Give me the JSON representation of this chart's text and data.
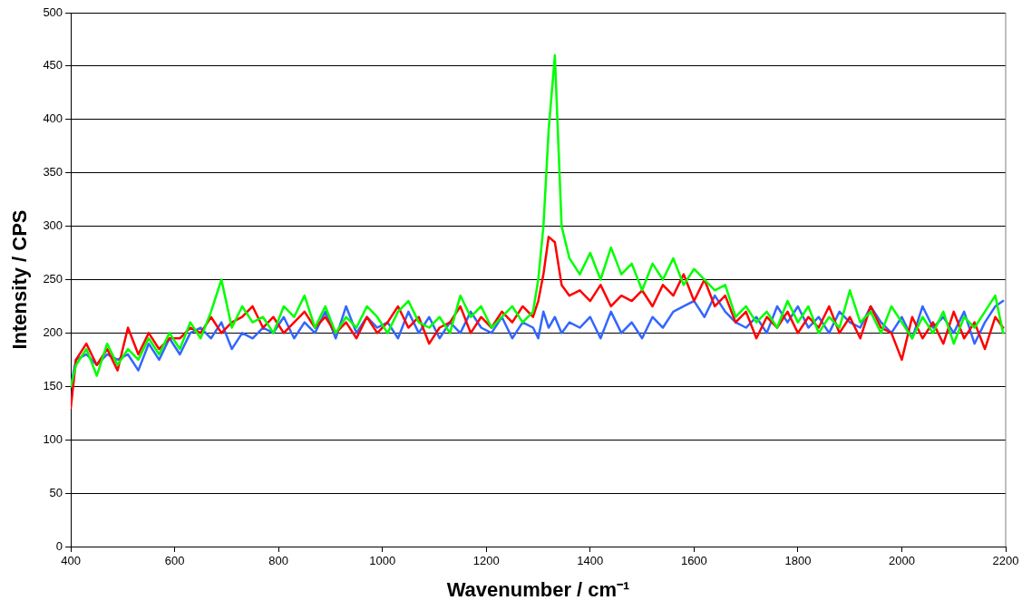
{
  "chart_data": {
    "type": "line",
    "xlabel": "Wavenumber / cm⁻¹",
    "ylabel": "Intensity / CPS",
    "x": [
      400,
      410,
      430,
      450,
      470,
      490,
      510,
      530,
      550,
      570,
      590,
      610,
      630,
      650,
      670,
      690,
      710,
      730,
      750,
      770,
      790,
      810,
      830,
      850,
      870,
      890,
      910,
      930,
      950,
      970,
      990,
      1010,
      1030,
      1050,
      1070,
      1090,
      1110,
      1130,
      1150,
      1170,
      1190,
      1210,
      1230,
      1250,
      1270,
      1290,
      1300,
      1310,
      1320,
      1332,
      1345,
      1360,
      1380,
      1400,
      1420,
      1440,
      1460,
      1480,
      1500,
      1520,
      1540,
      1560,
      1580,
      1600,
      1620,
      1640,
      1660,
      1680,
      1700,
      1720,
      1740,
      1760,
      1780,
      1800,
      1820,
      1840,
      1860,
      1880,
      1900,
      1920,
      1940,
      1960,
      1980,
      2000,
      2020,
      2040,
      2060,
      2080,
      2100,
      2120,
      2140,
      2160,
      2180,
      2195
    ],
    "series": [
      {
        "color": "#00ff00",
        "values": [
          150,
          170,
          185,
          160,
          190,
          170,
          185,
          175,
          195,
          180,
          200,
          185,
          210,
          195,
          220,
          250,
          205,
          225,
          210,
          215,
          200,
          225,
          215,
          235,
          205,
          225,
          200,
          215,
          205,
          225,
          215,
          200,
          220,
          230,
          210,
          205,
          215,
          200,
          235,
          215,
          225,
          205,
          215,
          225,
          210,
          220,
          250,
          300,
          390,
          460,
          300,
          270,
          255,
          275,
          250,
          280,
          255,
          265,
          240,
          265,
          250,
          270,
          245,
          260,
          250,
          240,
          245,
          215,
          225,
          210,
          220,
          205,
          230,
          210,
          225,
          200,
          215,
          205,
          240,
          210,
          220,
          200,
          225,
          210,
          195,
          215,
          200,
          220,
          190,
          215,
          205,
          220,
          235,
          200
        ]
      },
      {
        "color": "#ff0000",
        "values": [
          130,
          175,
          190,
          170,
          185,
          165,
          205,
          180,
          200,
          185,
          195,
          195,
          205,
          200,
          215,
          200,
          210,
          215,
          225,
          205,
          215,
          200,
          210,
          220,
          205,
          215,
          200,
          210,
          195,
          215,
          200,
          210,
          225,
          205,
          215,
          190,
          205,
          210,
          225,
          200,
          215,
          205,
          220,
          210,
          225,
          215,
          230,
          255,
          290,
          285,
          245,
          235,
          240,
          230,
          245,
          225,
          235,
          230,
          240,
          225,
          245,
          235,
          255,
          230,
          250,
          225,
          235,
          210,
          220,
          195,
          215,
          205,
          220,
          200,
          215,
          205,
          225,
          200,
          215,
          195,
          225,
          205,
          200,
          175,
          215,
          195,
          210,
          190,
          220,
          195,
          210,
          185,
          215,
          205
        ]
      },
      {
        "color": "#3366ff",
        "values": [
          150,
          175,
          180,
          170,
          180,
          175,
          180,
          165,
          190,
          175,
          195,
          180,
          200,
          205,
          195,
          210,
          185,
          200,
          195,
          205,
          200,
          215,
          195,
          210,
          200,
          220,
          195,
          225,
          200,
          215,
          205,
          210,
          195,
          220,
          200,
          215,
          195,
          210,
          200,
          220,
          205,
          200,
          215,
          195,
          210,
          205,
          195,
          220,
          205,
          215,
          200,
          210,
          205,
          215,
          195,
          220,
          200,
          210,
          195,
          215,
          205,
          220,
          225,
          230,
          215,
          235,
          220,
          210,
          205,
          215,
          200,
          225,
          210,
          225,
          205,
          215,
          200,
          220,
          210,
          205,
          225,
          210,
          200,
          215,
          195,
          225,
          205,
          215,
          200,
          220,
          190,
          210,
          225,
          230
        ]
      }
    ],
    "xlim": [
      400,
      2200
    ],
    "xticks": [
      400,
      600,
      800,
      1000,
      1200,
      1400,
      1600,
      1800,
      2000,
      2200
    ],
    "ylim": [
      0,
      500
    ],
    "yticks": [
      0,
      50,
      100,
      150,
      200,
      250,
      300,
      350,
      400,
      450,
      500
    ],
    "grid": "y",
    "legend": false,
    "marker": "none",
    "line_style": "solid"
  }
}
